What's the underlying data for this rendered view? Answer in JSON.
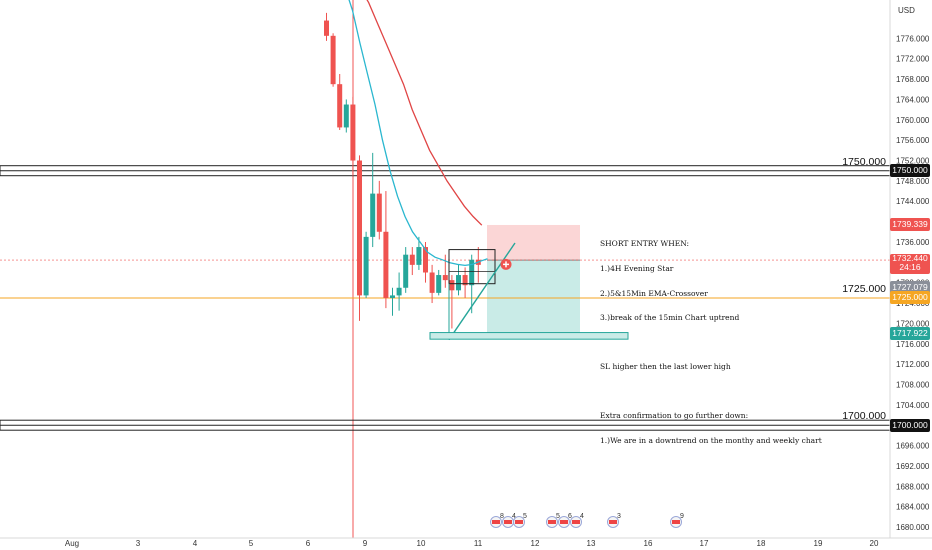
{
  "colors": {
    "bull": "#26a69a",
    "bear": "#ef5350",
    "ema_fast": "#2ab7cf",
    "ema_slow": "#e04545",
    "horizontal_orange": "#f5a623",
    "vertical_red": "#f05454",
    "stop_zone": "#fbd6d6",
    "target_zone": "#c9ebe7"
  },
  "chart_data": {
    "type": "candlestick",
    "currency_label": "USD",
    "x_tick_labels": [
      "Aug",
      "3",
      "4",
      "5",
      "6",
      "9",
      "10",
      "11",
      "12",
      "13",
      "16",
      "17",
      "18",
      "19",
      "20"
    ],
    "y_tick_labels": [
      "1776.000",
      "1772.000",
      "1768.000",
      "1764.000",
      "1760.000",
      "1756.000",
      "1752.000",
      "1748.000",
      "1744.000",
      "1740.000",
      "1736.000",
      "1732.000",
      "1728.000",
      "1724.000",
      "1720.000",
      "1716.000",
      "1712.000",
      "1708.000",
      "1704.000",
      "1700.000",
      "1696.000",
      "1692.000",
      "1688.000",
      "1684.000",
      "1680.000"
    ],
    "y_range": [
      1679,
      1780
    ],
    "candles": [
      {
        "o": 1779.5,
        "h": 1781,
        "c": 1776.5,
        "l": 1775.5
      },
      {
        "o": 1776.5,
        "h": 1777,
        "c": 1767.0,
        "l": 1766.5
      },
      {
        "o": 1767.0,
        "h": 1769,
        "c": 1758.5,
        "l": 1758.0
      },
      {
        "o": 1758.5,
        "h": 1764,
        "c": 1763.0,
        "l": 1757.5
      },
      {
        "o": 1763.0,
        "h": 1764.5,
        "c": 1752.0,
        "l": 1749.0
      },
      {
        "o": 1752.0,
        "h": 1753,
        "c": 1725.5,
        "l": 1720.5
      },
      {
        "o": 1725.5,
        "h": 1738,
        "c": 1737.0,
        "l": 1725.0
      },
      {
        "o": 1737.0,
        "h": 1753.5,
        "c": 1745.5,
        "l": 1735.0
      },
      {
        "o": 1745.5,
        "h": 1748,
        "c": 1738.0,
        "l": 1736.5
      },
      {
        "o": 1738.0,
        "h": 1746,
        "c": 1725.0,
        "l": 1723.0
      },
      {
        "o": 1725.0,
        "h": 1727,
        "c": 1725.5,
        "l": 1721.5
      },
      {
        "o": 1725.5,
        "h": 1730,
        "c": 1727.0,
        "l": 1722.5
      },
      {
        "o": 1727.0,
        "h": 1735,
        "c": 1733.5,
        "l": 1726.0
      },
      {
        "o": 1733.5,
        "h": 1735,
        "c": 1731.5,
        "l": 1729.5
      },
      {
        "o": 1731.5,
        "h": 1737,
        "c": 1735.0,
        "l": 1730.5
      },
      {
        "o": 1735.0,
        "h": 1736,
        "c": 1730.0,
        "l": 1728.0
      },
      {
        "o": 1730.0,
        "h": 1731.5,
        "c": 1726.0,
        "l": 1724.0
      },
      {
        "o": 1726.0,
        "h": 1730.5,
        "c": 1729.5,
        "l": 1725.5
      },
      {
        "o": 1729.5,
        "h": 1733.5,
        "c": 1728.5,
        "l": 1727.0
      },
      {
        "o": 1728.5,
        "h": 1729.5,
        "c": 1726.5,
        "l": 1719.0
      },
      {
        "o": 1726.5,
        "h": 1731.5,
        "c": 1729.5,
        "l": 1725.5
      },
      {
        "o": 1729.5,
        "h": 1731,
        "c": 1727.5,
        "l": 1725.0
      },
      {
        "o": 1727.5,
        "h": 1733.5,
        "c": 1732.5,
        "l": 1722.0
      },
      {
        "o": 1732.5,
        "h": 1735,
        "c": 1731.5,
        "l": 1728.0
      }
    ],
    "ema_fast": [
      1786,
      1781.5,
      1775,
      1769,
      1763,
      1756,
      1750,
      1745,
      1741,
      1738,
      1736,
      1734,
      1733,
      1732.5,
      1731.9,
      1731.6,
      1731.4,
      1731.6,
      1732.2,
      1732.7
    ],
    "ema_slow": [
      1786,
      1783,
      1779,
      1775,
      1771,
      1767,
      1762,
      1758,
      1754,
      1751,
      1748,
      1745.5,
      1743,
      1741,
      1739.3
    ],
    "levels": [
      {
        "value": 1750.0,
        "label": "1750.000"
      },
      {
        "value": 1725.0,
        "label": "1725.000"
      },
      {
        "value": 1700.0,
        "label": "1700.000"
      }
    ],
    "price_badges": [
      {
        "text": "1750.000",
        "kind": "level",
        "value": 1750.0
      },
      {
        "text": "1739.339",
        "kind": "stop",
        "value": 1739.339
      },
      {
        "text": "1732.440",
        "sub": "24:16",
        "kind": "last",
        "value": 1732.44
      },
      {
        "text": "1727.079",
        "kind": "mid",
        "value": 1727.079
      },
      {
        "text": "1725.000",
        "kind": "orange",
        "value": 1725.0
      },
      {
        "text": "1717.922",
        "kind": "target",
        "value": 1717.922
      },
      {
        "text": "1700.000",
        "kind": "level",
        "value": 1700.0
      }
    ],
    "position": {
      "entry": 1732.44,
      "stop": 1739.339,
      "target": 1717.922
    },
    "trend_line": {
      "from": 1716.8,
      "to": 1735.8
    },
    "annotation_box": {
      "top": 1734.5,
      "bottom": 1727.8
    },
    "support_rect": {
      "top": 1718.2,
      "bottom": 1716.9
    },
    "event_badges": [
      "8",
      "4",
      "5",
      "5",
      "6",
      "4",
      "3",
      "9"
    ]
  },
  "notes": {
    "line1": "SHORT ENTRY WHEN:",
    "line2": "1.)4H Evening Star",
    "line3": "2.)5&15Min EMA-Crossover",
    "line4": "3.)break of the 15min Chart uptrend",
    "line5": "SL higher then the last lower high",
    "line6": "Extra confirmation to go further down:",
    "line7": "1.)We are in a downtrend on the monthy and weekly chart"
  }
}
